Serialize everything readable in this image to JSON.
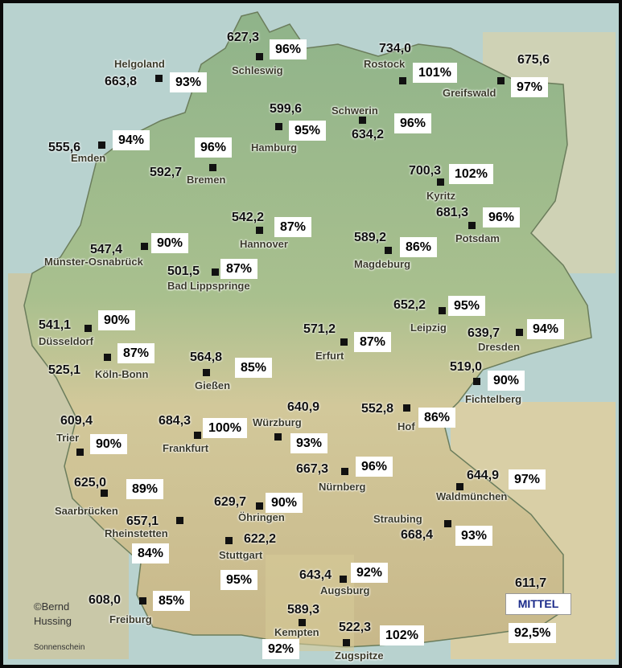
{
  "credit": {
    "line1": "©Bernd",
    "line2": "Hussing"
  },
  "footer": "Sonnenschein",
  "legend": {
    "label": "MITTEL",
    "value": "611,7",
    "percent": "92,5%"
  },
  "stations": [
    {
      "name": "Helgoland",
      "value": "663,8",
      "percent": "93%"
    },
    {
      "name": "Schleswig",
      "value": "627,3",
      "percent": "96%"
    },
    {
      "name": "Rostock",
      "value": "734,0",
      "percent": "101%"
    },
    {
      "name": "Greifswald",
      "value": "675,6",
      "percent": "97%"
    },
    {
      "name": "Emden",
      "value": "555,6",
      "percent": "94%"
    },
    {
      "name": "Hamburg",
      "value": "599,6",
      "percent": "95%"
    },
    {
      "name": "Schwerin",
      "value": "634,2",
      "percent": "96%"
    },
    {
      "name": "Bremen",
      "value": "592,7",
      "percent": "96%"
    },
    {
      "name": "Kyritz",
      "value": "700,3",
      "percent": "102%"
    },
    {
      "name": "Potsdam",
      "value": "681,3",
      "percent": "96%"
    },
    {
      "name": "Hannover",
      "value": "542,2",
      "percent": "87%"
    },
    {
      "name": "Münster-Osnabrück",
      "value": "547,4",
      "percent": "90%"
    },
    {
      "name": "Magdeburg",
      "value": "589,2",
      "percent": "86%"
    },
    {
      "name": "Bad Lippspringe",
      "value": "501,5",
      "percent": "87%"
    },
    {
      "name": "Leipzig",
      "value": "652,2",
      "percent": "95%"
    },
    {
      "name": "Düsseldorf",
      "value": "541,1",
      "percent": "90%"
    },
    {
      "name": "Dresden",
      "value": "639,7",
      "percent": "94%"
    },
    {
      "name": "Erfurt",
      "value": "571,2",
      "percent": "87%"
    },
    {
      "name": "Köln-Bonn",
      "value": "525,1",
      "percent": "87%"
    },
    {
      "name": "Gießen",
      "value": "564,8",
      "percent": "85%"
    },
    {
      "name": "Fichtelberg",
      "value": "519,0",
      "percent": "90%"
    },
    {
      "name": "Würzburg",
      "value": "640,9",
      "percent": "93%"
    },
    {
      "name": "Hof",
      "value": "552,8",
      "percent": "86%"
    },
    {
      "name": "Trier",
      "value": "609,4",
      "percent": "90%"
    },
    {
      "name": "Frankfurt",
      "value": "684,3",
      "percent": "100%"
    },
    {
      "name": "Nürnberg",
      "value": "667,3",
      "percent": "96%"
    },
    {
      "name": "Waldmünchen",
      "value": "644,9",
      "percent": "97%"
    },
    {
      "name": "Saarbrücken",
      "value": "625,0",
      "percent": "89%"
    },
    {
      "name": "Öhringen",
      "value": "629,7",
      "percent": "90%"
    },
    {
      "name": "Rheinstetten",
      "value": "657,1",
      "percent": "84%"
    },
    {
      "name": "Stuttgart",
      "value": "622,2",
      "percent": "95%"
    },
    {
      "name": "Straubing",
      "value": "668,4",
      "percent": "93%"
    },
    {
      "name": "Augsburg",
      "value": "643,4",
      "percent": "92%"
    },
    {
      "name": "Freiburg",
      "value": "608,0",
      "percent": "85%"
    },
    {
      "name": "Kempten",
      "value": "589,3",
      "percent": "92%"
    },
    {
      "name": "Zugspitze",
      "value": "522,3",
      "percent": "102%"
    }
  ]
}
